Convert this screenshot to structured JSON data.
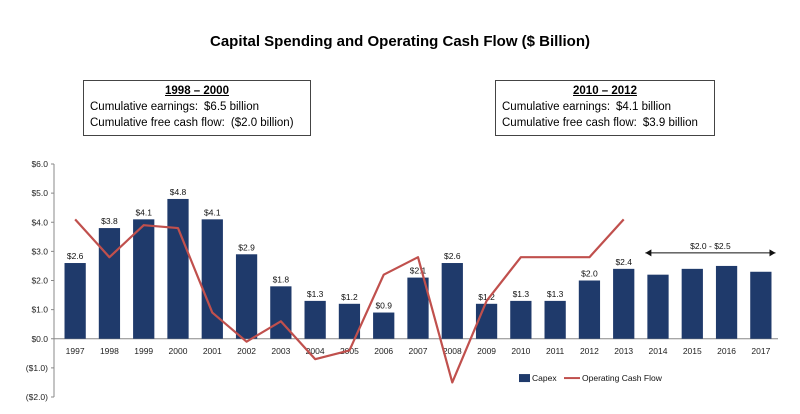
{
  "title": "Capital Spending and Operating Cash Flow ($ Billion)",
  "notes": [
    {
      "header": "1998 – 2000",
      "rows": [
        {
          "label": "Cumulative earnings:",
          "value": "$6.5 billion"
        },
        {
          "label": "Cumulative free cash flow:",
          "value": "($2.0 billion)"
        }
      ]
    },
    {
      "header": "2010 – 2012",
      "rows": [
        {
          "label": "Cumulative earnings:",
          "value": "$4.1 billion"
        },
        {
          "label": "Cumulative free cash flow:",
          "value": "$3.9 billion"
        }
      ]
    }
  ],
  "chart_data": {
    "type": "bar",
    "categories": [
      "1997",
      "1998",
      "1999",
      "2000",
      "2001",
      "2002",
      "2003",
      "2004",
      "2005",
      "2006",
      "2007",
      "2008",
      "2009",
      "2010",
      "2011",
      "2012",
      "2013",
      "2014",
      "2015",
      "2016",
      "2017"
    ],
    "series": [
      {
        "name": "Capex",
        "type": "bar",
        "color": "#1f3a6b",
        "values": [
          2.6,
          3.8,
          4.1,
          4.8,
          4.1,
          2.9,
          1.8,
          1.3,
          1.2,
          0.9,
          2.1,
          2.6,
          1.2,
          1.3,
          1.3,
          2.0,
          2.4,
          2.2,
          2.4,
          2.5,
          2.3
        ],
        "labels": [
          "$2.6",
          "$3.8",
          "$4.1",
          "$4.8",
          "$4.1",
          "$2.9",
          "$1.8",
          "$1.3",
          "$1.2",
          "$0.9",
          "$2.1",
          "$2.6",
          "$1.2",
          "$1.3",
          "$1.3",
          "$2.0",
          "$2.4",
          "",
          "",
          "",
          ""
        ]
      },
      {
        "name": "Operating Cash Flow",
        "type": "line",
        "color": "#c0504d",
        "values": [
          4.1,
          2.8,
          3.9,
          3.8,
          0.9,
          -0.1,
          0.6,
          -0.7,
          -0.4,
          2.2,
          2.8,
          -1.5,
          1.3,
          2.8,
          2.8,
          2.8,
          4.1,
          null,
          null,
          null,
          null
        ]
      }
    ],
    "ylim": [
      -2.0,
      6.0
    ],
    "yticks": [
      6.0,
      5.0,
      4.0,
      3.0,
      2.0,
      1.0,
      0.0,
      -1.0,
      -2.0
    ],
    "ytick_labels": [
      "$6.0",
      "$5.0",
      "$4.0",
      "$3.0",
      "$2.0",
      "$1.0",
      "$0.0",
      "($1.0)",
      "($2.0)"
    ],
    "range_annotation": {
      "text": "$2.0 - $2.5",
      "from": "2014",
      "to": "2017"
    },
    "legend_position": "bottom-right"
  }
}
